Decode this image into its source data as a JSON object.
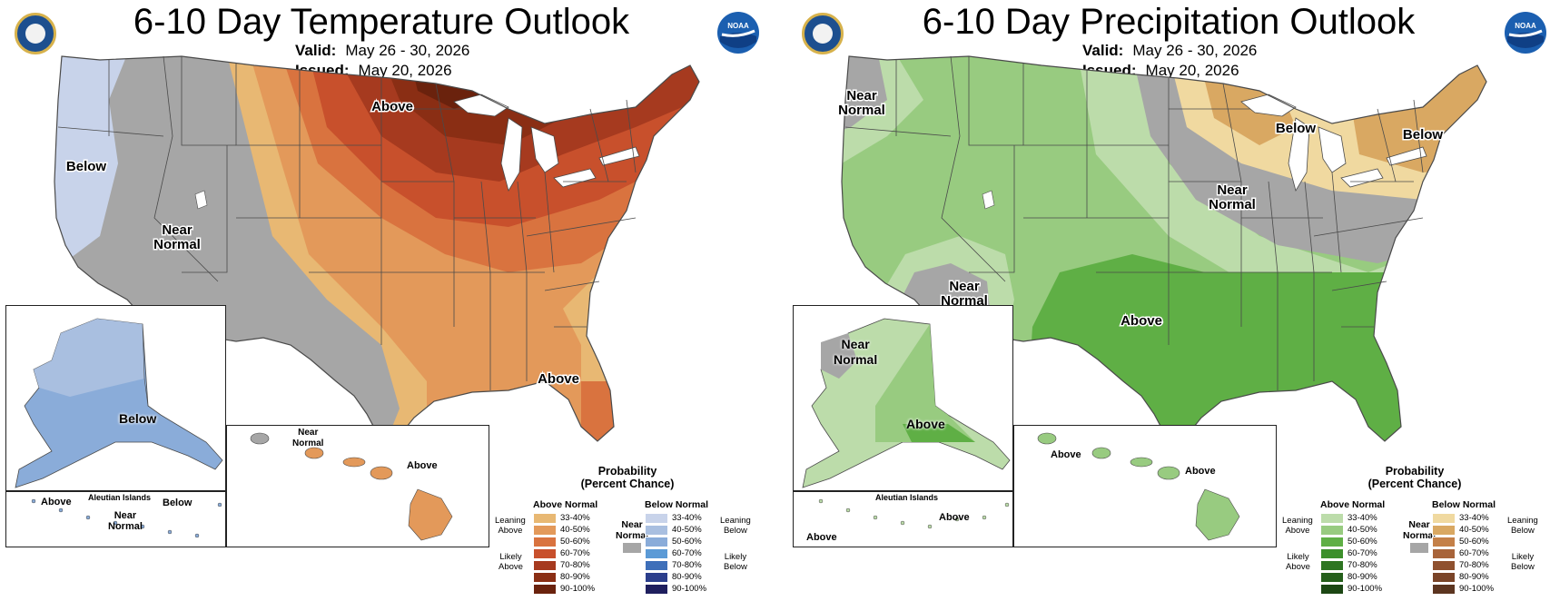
{
  "temperature": {
    "title": "6-10 Day Temperature Outlook",
    "valid_label": "Valid:",
    "valid_value": "May 26 - 30, 2026",
    "issued_label": "Issued:",
    "issued_value": "May 20, 2026",
    "labels": {
      "above_north": "Above",
      "below_west": "Below",
      "near_normal_1": "Near",
      "near_normal_2": "Normal",
      "above_florida": "Above",
      "alaska_below": "Below",
      "hawaii_near_1": "Near",
      "hawaii_near_2": "Normal",
      "hawaii_above": "Above",
      "aleutian_title": "Aleutian Islands",
      "aleutian_above": "Above",
      "aleutian_below": "Below",
      "aleutian_near_1": "Near",
      "aleutian_near_2": "Normal"
    },
    "legend": {
      "title_1": "Probability",
      "title_2": "(Percent Chance)",
      "above_title": "Above Normal",
      "below_title": "Below Normal",
      "near_normal_1": "Near",
      "near_normal_2": "Normal",
      "leaning_above_1": "Leaning",
      "leaning_above_2": "Above",
      "likely_above_1": "Likely",
      "likely_above_2": "Above",
      "leaning_below_1": "Leaning",
      "leaning_below_2": "Below",
      "likely_below_1": "Likely",
      "likely_below_2": "Below",
      "ranges": [
        "33-40%",
        "40-50%",
        "50-60%",
        "60-70%",
        "70-80%",
        "80-90%",
        "90-100%"
      ],
      "above_colors": [
        "#e8b873",
        "#e3995a",
        "#d9733f",
        "#c8502c",
        "#a63a1f",
        "#8a2e14",
        "#6a220d"
      ],
      "below_colors": [
        "#c8d3ea",
        "#a9bfe0",
        "#8aacd9",
        "#5b9ad6",
        "#3e6fb9",
        "#2b3e8c",
        "#1f1f5e"
      ]
    }
  },
  "precipitation": {
    "title": "6-10 Day Precipitation Outlook",
    "valid_label": "Valid:",
    "valid_value": "May 26 - 30, 2026",
    "issued_label": "Issued:",
    "issued_value": "May 20, 2026",
    "labels": {
      "near_nw_1": "Near",
      "near_nw_2": "Normal",
      "below_lakes": "Below",
      "below_ne": "Below",
      "near_central_1": "Near",
      "near_central_2": "Normal",
      "near_sw_1": "Near",
      "near_sw_2": "Normal",
      "above_south": "Above",
      "alaska_near_1": "Near",
      "alaska_near_2": "Normal",
      "alaska_above": "Above",
      "hawaii_above_1": "Above",
      "hawaii_above_2": "Above",
      "aleutian_title": "Aleutian Islands",
      "aleutian_above_1": "Above",
      "aleutian_above_2": "Above"
    },
    "legend": {
      "title_1": "Probability",
      "title_2": "(Percent Chance)",
      "above_title": "Above Normal",
      "below_title": "Below Normal",
      "near_normal_1": "Near",
      "near_normal_2": "Normal",
      "leaning_above_1": "Leaning",
      "leaning_above_2": "Above",
      "likely_above_1": "Likely",
      "likely_above_2": "Above",
      "leaning_below_1": "Leaning",
      "leaning_below_2": "Below",
      "likely_below_1": "Likely",
      "likely_below_2": "Below",
      "ranges": [
        "33-40%",
        "40-50%",
        "50-60%",
        "60-70%",
        "70-80%",
        "80-90%",
        "90-100%"
      ],
      "above_colors": [
        "#bcdcaa",
        "#98cb80",
        "#5faf45",
        "#3c8f2b",
        "#2e7522",
        "#255f1b",
        "#1c4714"
      ],
      "below_colors": [
        "#f0d9a0",
        "#d9a862",
        "#c48048",
        "#a8643a",
        "#8f512f",
        "#7a4428",
        "#5c3520"
      ]
    }
  },
  "colors": {
    "near_normal": "#a6a6a6",
    "state_border": "#4a4a4a",
    "water": "#ffffff"
  }
}
